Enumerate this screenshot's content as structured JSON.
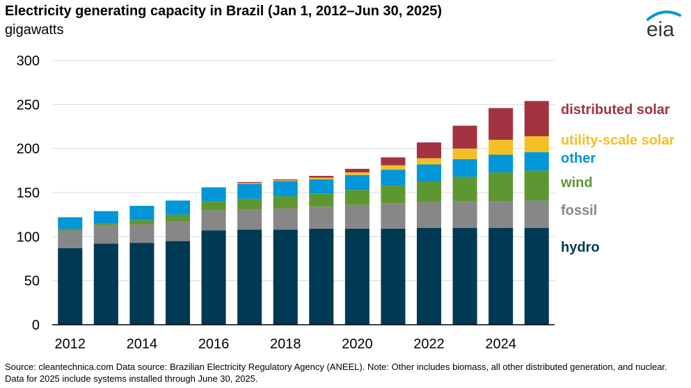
{
  "header": {
    "title": "Electricity generating capacity in Brazil (Jan 1, 2012–Jun 30, 2025)",
    "subtitle": "gigawatts",
    "logo_text": "eia"
  },
  "chart_data": {
    "type": "bar",
    "stacked": true,
    "categories": [
      "2012",
      "2013",
      "2014",
      "2015",
      "2016",
      "2017",
      "2018",
      "2019",
      "2020",
      "2021",
      "2022",
      "2023",
      "2024",
      "2025"
    ],
    "x_tick_labels": [
      "2012",
      "2014",
      "2016",
      "2018",
      "2020",
      "2022",
      "2024"
    ],
    "ylim": [
      0,
      300
    ],
    "y_ticks": [
      0,
      50,
      100,
      150,
      200,
      250,
      300
    ],
    "grid": true,
    "legend_placement": "right",
    "series": [
      {
        "name": "hydro",
        "color": "#003953",
        "values": [
          87,
          92,
          93,
          95,
          107,
          108,
          108,
          109,
          109,
          109,
          110,
          110,
          110,
          110
        ]
      },
      {
        "name": "fossil",
        "color": "#878787",
        "values": [
          20,
          21,
          21,
          22,
          23,
          23,
          24,
          25,
          27,
          29,
          29,
          30,
          30,
          31
        ]
      },
      {
        "name": "wind",
        "color": "#5d9732",
        "values": [
          2,
          2,
          5,
          8,
          10,
          12,
          14,
          15,
          17,
          20,
          24,
          28,
          33,
          34
        ]
      },
      {
        "name": "other",
        "color": "#0096d7",
        "values": [
          13,
          14,
          16,
          16,
          16,
          17,
          17,
          16,
          17,
          18,
          19,
          20,
          20,
          21
        ]
      },
      {
        "name": "utility-scale solar",
        "color": "#f5c026",
        "values": [
          0,
          0,
          0,
          0,
          0,
          1,
          1,
          2,
          3,
          5,
          7,
          12,
          17,
          18
        ]
      },
      {
        "name": "distributed solar",
        "color": "#a33340",
        "values": [
          0,
          0,
          0,
          0,
          0,
          1,
          1,
          2,
          4,
          9,
          18,
          26,
          36,
          40
        ]
      }
    ]
  },
  "footer": {
    "source": "Source: cleantechnica.com Data source: Brazilian Electricity Regulatory Agency (ANEEL). Note: Other includes biomass, all other distributed generation, and nuclear. Data for 2025 include systems installed through June 30, 2025."
  }
}
